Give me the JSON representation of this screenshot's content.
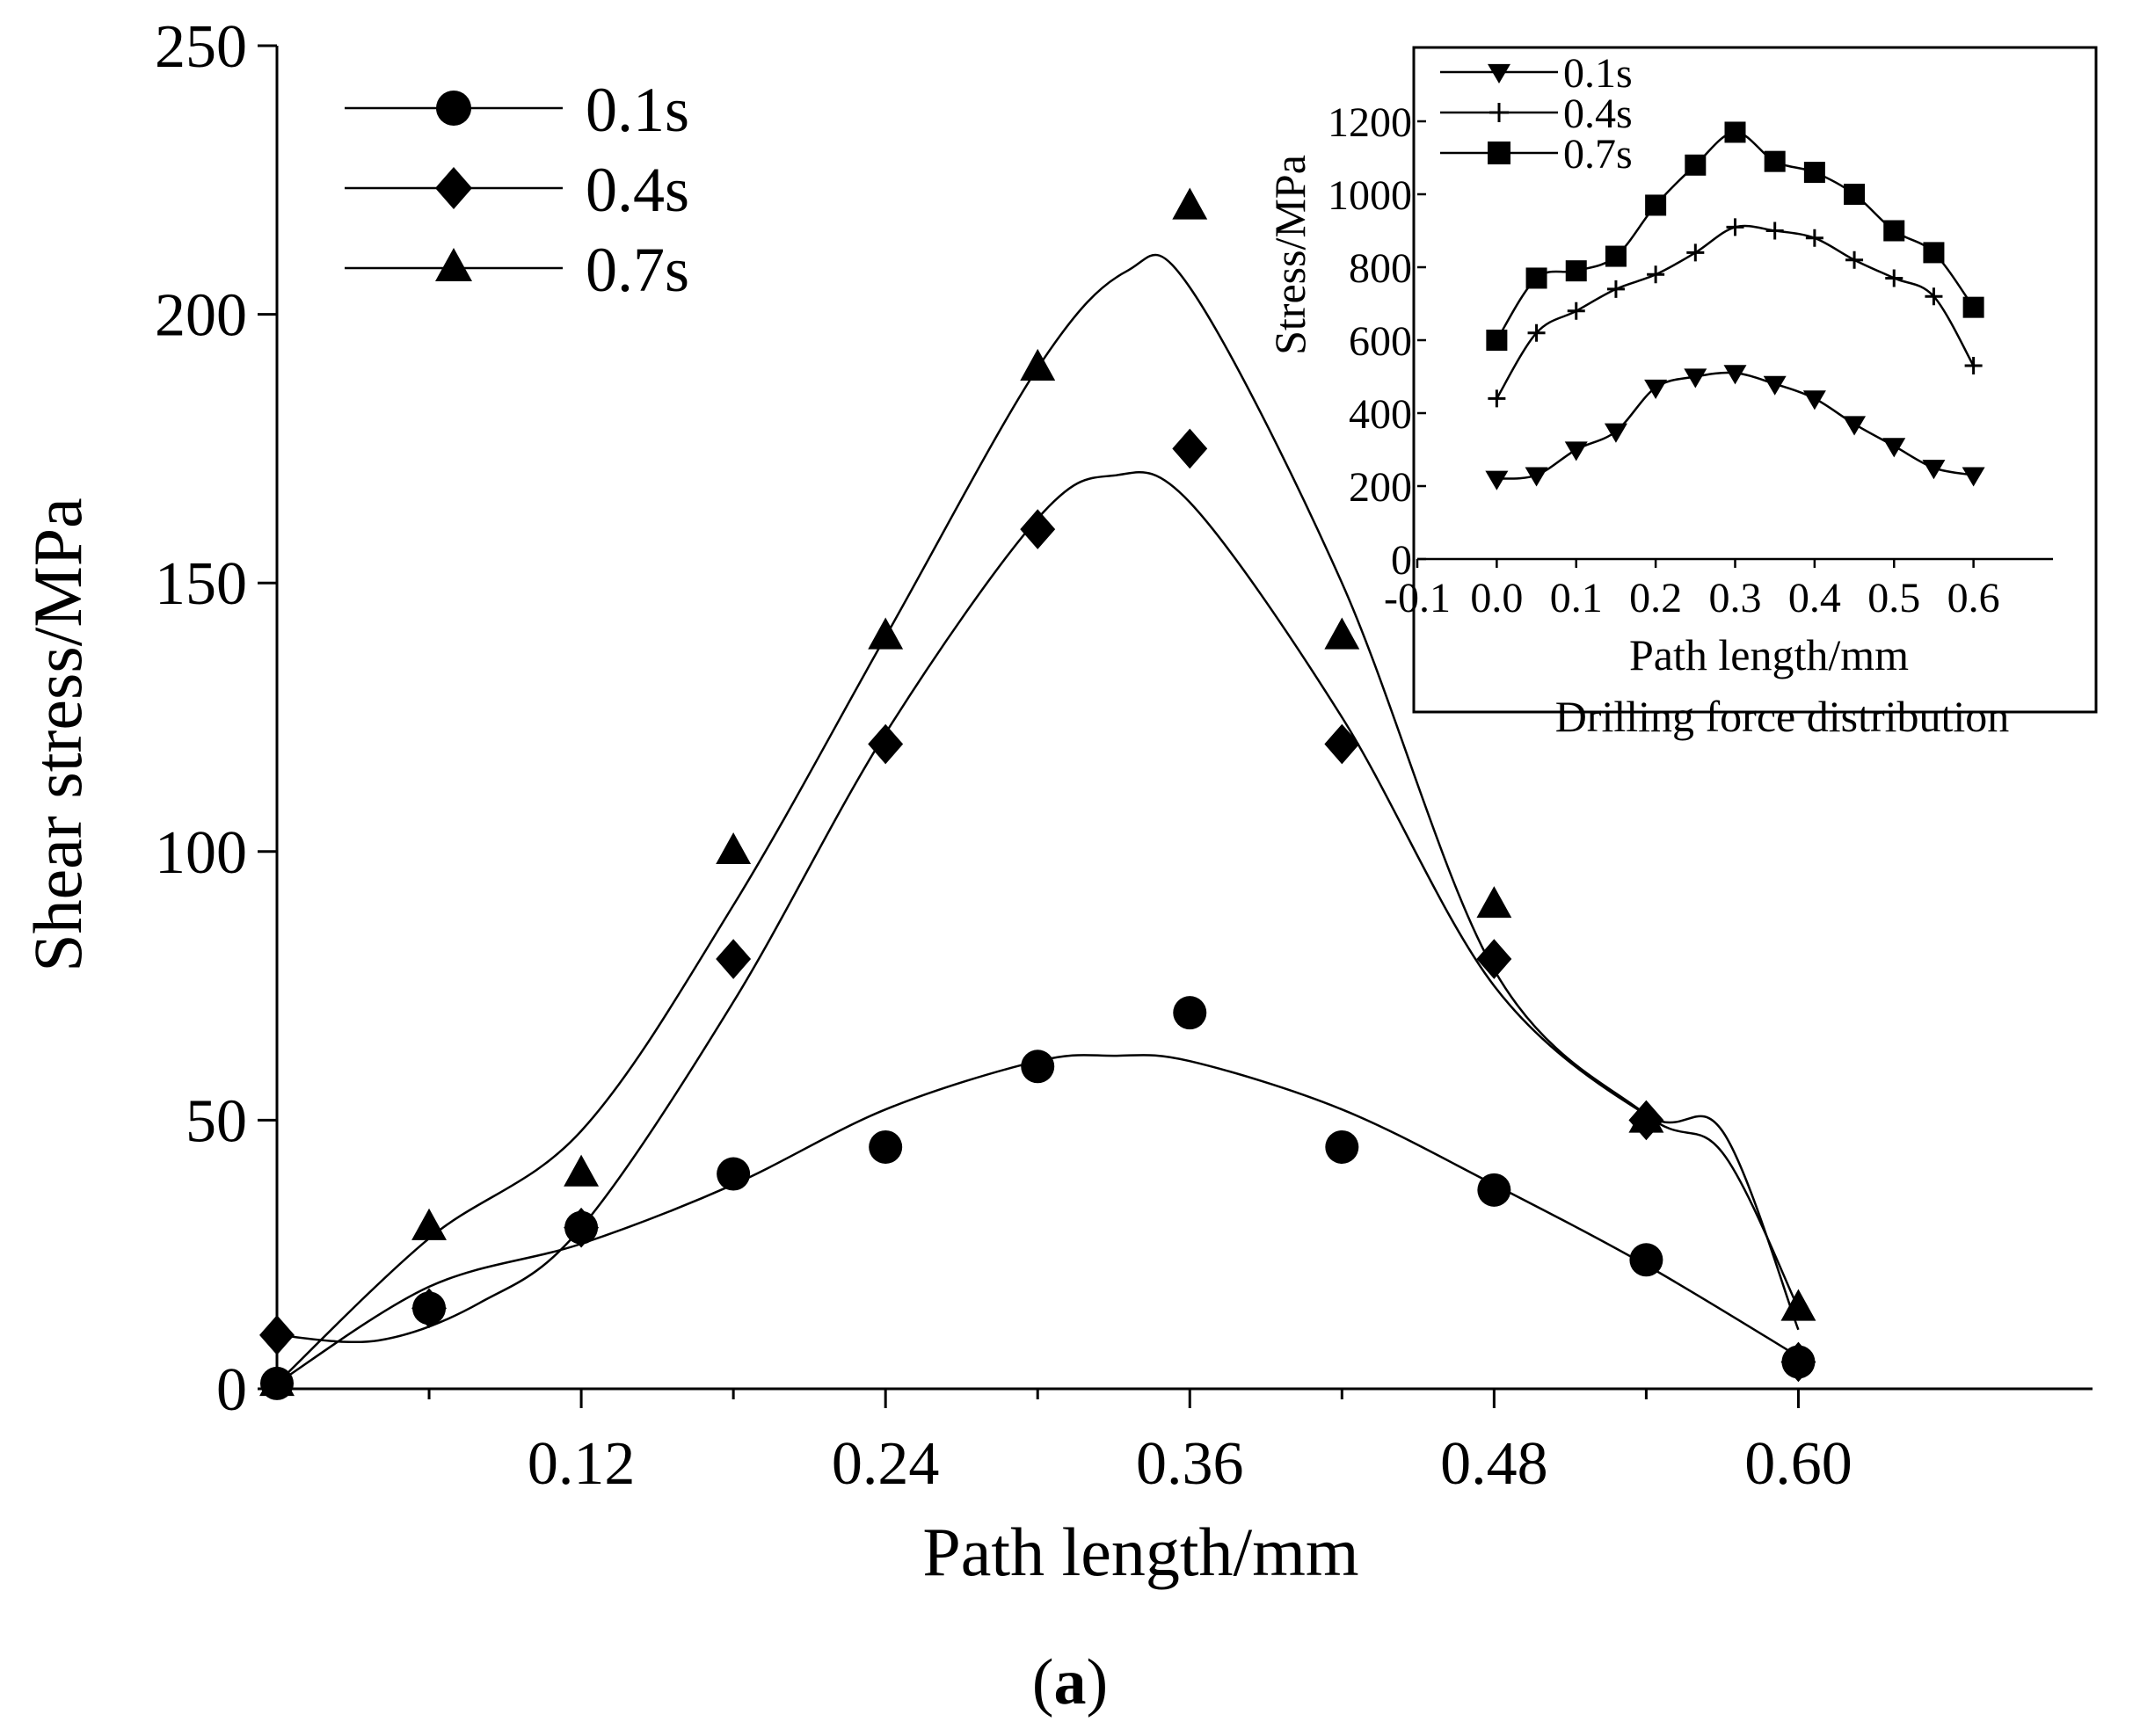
{
  "caption": {
    "open": "(",
    "letter": "a",
    "close": ")"
  },
  "chart_data": [
    {
      "id": "main",
      "type": "scatter",
      "xlabel": "Path length/mm",
      "ylabel": "Shear stress/MPa",
      "xlim": [
        0,
        0.716
      ],
      "ylim": [
        0,
        250
      ],
      "xticks": [
        0.12,
        0.24,
        0.36,
        0.48,
        0.6
      ],
      "xtick_labels": [
        "0.12",
        "0.24",
        "0.36",
        "0.48",
        "0.60"
      ],
      "yticks": [
        0,
        50,
        100,
        150,
        200,
        250
      ],
      "ytick_labels": [
        "0",
        "50",
        "100",
        "150",
        "200",
        "250"
      ],
      "legend_position": "top-left",
      "series": [
        {
          "name": "0.1s",
          "marker": "circle",
          "x": [
            0,
            0.06,
            0.12,
            0.18,
            0.24,
            0.3,
            0.36,
            0.42,
            0.48,
            0.54,
            0.6
          ],
          "y": [
            1,
            15,
            30,
            40,
            45,
            60,
            70,
            45,
            37,
            24,
            5
          ],
          "fit_x": [
            0,
            0.06,
            0.12,
            0.18,
            0.24,
            0.3,
            0.33,
            0.36,
            0.42,
            0.48,
            0.54,
            0.6
          ],
          "fit_y": [
            1,
            19,
            27,
            38,
            52,
            61,
            62,
            61,
            52,
            38,
            23,
            6
          ]
        },
        {
          "name": "0.4s",
          "marker": "diamond",
          "x": [
            0,
            0.06,
            0.12,
            0.18,
            0.24,
            0.3,
            0.36,
            0.42,
            0.48,
            0.54,
            0.6
          ],
          "y": [
            10,
            15,
            30,
            80,
            120,
            160,
            175,
            120,
            80,
            50,
            5
          ],
          "fit_x": [
            0,
            0.04,
            0.08,
            0.12,
            0.18,
            0.24,
            0.3,
            0.33,
            0.36,
            0.42,
            0.48,
            0.54,
            0.57,
            0.6
          ],
          "fit_y": [
            10,
            9,
            16,
            30,
            72,
            122,
            162,
            170,
            165,
            125,
            75,
            51,
            48,
            11
          ]
        },
        {
          "name": "0.7s",
          "marker": "triangle",
          "x": [
            0,
            0.06,
            0.12,
            0.18,
            0.24,
            0.3,
            0.36,
            0.42,
            0.48,
            0.54,
            0.6
          ],
          "y": [
            1,
            30,
            40,
            100,
            140,
            190,
            220,
            140,
            90,
            50,
            15
          ],
          "fit_x": [
            0,
            0.06,
            0.12,
            0.18,
            0.24,
            0.3,
            0.335,
            0.36,
            0.42,
            0.48,
            0.54,
            0.57,
            0.6
          ],
          "fit_y": [
            1,
            28,
            48,
            90,
            140,
            190,
            208,
            205,
            150,
            78,
            51,
            44,
            15
          ]
        }
      ]
    },
    {
      "id": "inset",
      "type": "line",
      "title": "Drilling force distribution",
      "xlabel": "Path length/mm",
      "ylabel": "Stress/MPa",
      "xlim": [
        -0.1,
        0.7
      ],
      "ylim": [
        0,
        1200
      ],
      "xticks": [
        -0.1,
        0.0,
        0.1,
        0.2,
        0.3,
        0.4,
        0.5,
        0.6
      ],
      "xtick_labels": [
        "-0.1",
        "0.0",
        "0.1",
        "0.2",
        "0.3",
        "0.4",
        "0.5",
        "0.6"
      ],
      "yticks": [
        0,
        200,
        400,
        600,
        800,
        1000,
        1200
      ],
      "ytick_labels": [
        "0",
        "200",
        "400",
        "600",
        "800",
        "1000",
        "1200"
      ],
      "legend_position": "top-left",
      "series": [
        {
          "name": "0.1s",
          "marker": "triangle-down",
          "x": [
            0,
            0.05,
            0.1,
            0.15,
            0.2,
            0.25,
            0.3,
            0.35,
            0.4,
            0.45,
            0.5,
            0.55,
            0.6
          ],
          "y": [
            220,
            230,
            300,
            350,
            470,
            500,
            510,
            480,
            440,
            370,
            310,
            250,
            230
          ]
        },
        {
          "name": "0.4s",
          "marker": "plus",
          "x": [
            0,
            0.05,
            0.1,
            0.15,
            0.2,
            0.25,
            0.3,
            0.35,
            0.4,
            0.45,
            0.5,
            0.55,
            0.6
          ],
          "y": [
            440,
            620,
            680,
            740,
            780,
            840,
            910,
            900,
            880,
            820,
            770,
            720,
            530
          ]
        },
        {
          "name": "0.7s",
          "marker": "square",
          "x": [
            0,
            0.05,
            0.1,
            0.15,
            0.2,
            0.25,
            0.3,
            0.35,
            0.4,
            0.45,
            0.5,
            0.55,
            0.6
          ],
          "y": [
            600,
            770,
            790,
            830,
            970,
            1080,
            1170,
            1090,
            1060,
            1000,
            900,
            840,
            690
          ]
        }
      ]
    }
  ]
}
